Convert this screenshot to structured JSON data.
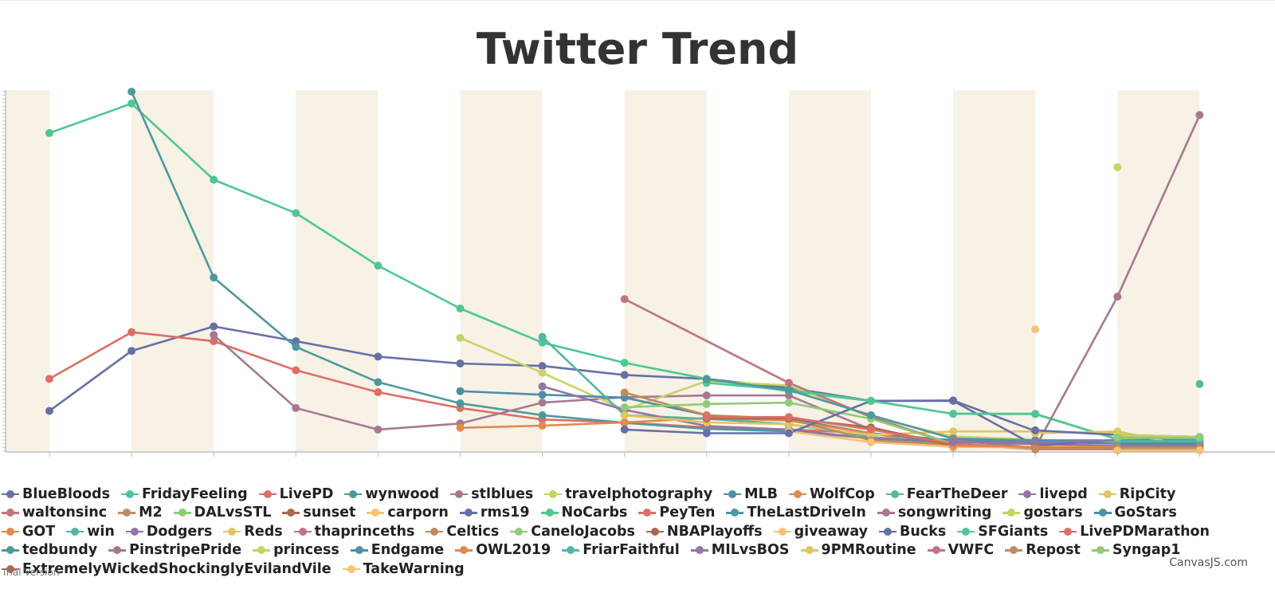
{
  "chart_data": {
    "type": "line",
    "title": "Twitter Trend",
    "x": [
      0,
      1,
      2,
      3,
      4,
      5,
      6,
      7,
      8,
      9,
      10,
      11,
      12,
      13,
      14
    ],
    "ylim": [
      0,
      1000
    ],
    "grid": false,
    "alternating_bands": true,
    "legend_position": "bottom",
    "series": [
      {
        "name": "BlueBloods",
        "color": "#6570A6",
        "points": [
          [
            0,
            112
          ],
          [
            1,
            279
          ],
          [
            2,
            347
          ],
          [
            3,
            306
          ],
          [
            4,
            263
          ],
          [
            5,
            244
          ],
          [
            6,
            237
          ],
          [
            7,
            212
          ],
          [
            8,
            201
          ],
          [
            9,
            176
          ],
          [
            10,
            140
          ],
          [
            11,
            141
          ],
          [
            12,
            56
          ]
        ]
      },
      {
        "name": "FridayFeeling",
        "color": "#4FC792",
        "points": [
          [
            0,
            885
          ],
          [
            1,
            967
          ],
          [
            2,
            755
          ],
          [
            3,
            662
          ],
          [
            4,
            516
          ],
          [
            5,
            397
          ],
          [
            6,
            302
          ],
          [
            7,
            246
          ],
          [
            8,
            201
          ],
          [
            9,
            166
          ],
          [
            10,
            140
          ],
          [
            11,
            104
          ],
          [
            12,
            103
          ],
          [
            13,
            33
          ],
          [
            14,
            39
          ]
        ]
      },
      {
        "name": "LivePD",
        "color": "#DE6E66",
        "points": [
          [
            0,
            201
          ],
          [
            1,
            331
          ],
          [
            2,
            306
          ],
          [
            3,
            225
          ],
          [
            4,
            164
          ],
          [
            5,
            120
          ],
          [
            6,
            88
          ],
          [
            7,
            80
          ],
          [
            8,
            66
          ],
          [
            9,
            60
          ],
          [
            10,
            50
          ],
          [
            11,
            26
          ]
        ]
      },
      {
        "name": "wynwood",
        "color": "#4D9A9C",
        "points": [
          [
            1,
            1000
          ],
          [
            2,
            483
          ],
          [
            3,
            290
          ],
          [
            4,
            192
          ],
          [
            5,
            133
          ],
          [
            6,
            100
          ],
          [
            7,
            79
          ],
          [
            8,
            62
          ],
          [
            9,
            55
          ],
          [
            10,
            36
          ],
          [
            11,
            32
          ],
          [
            12,
            30
          ],
          [
            13,
            28
          ],
          [
            14,
            22
          ]
        ]
      },
      {
        "name": "stlblues",
        "color": "#A8788F",
        "points": [
          [
            2,
            323
          ],
          [
            3,
            120
          ],
          [
            4,
            60
          ],
          [
            5,
            77
          ],
          [
            6,
            135
          ],
          [
            7,
            150
          ],
          [
            8,
            155
          ],
          [
            9,
            155
          ],
          [
            10,
            60
          ],
          [
            11,
            22
          ]
        ]
      },
      {
        "name": "travelphotography",
        "color": "#C9D265",
        "points": [
          [
            5,
            315
          ],
          [
            6,
            218
          ],
          [
            7,
            115
          ],
          [
            8,
            195
          ],
          [
            9,
            183
          ],
          [
            10,
            95
          ],
          [
            11,
            41
          ],
          [
            12,
            32
          ],
          [
            13,
            25
          ],
          [
            14,
            20
          ]
        ]
      },
      {
        "name": "MLB",
        "color": "#4B8FA7",
        "points": [
          [
            5,
            167
          ],
          [
            6,
            157
          ],
          [
            7,
            149
          ],
          [
            8,
            100
          ],
          [
            9,
            90
          ],
          [
            10,
            50
          ],
          [
            11,
            30
          ],
          [
            12,
            25
          ],
          [
            13,
            22
          ],
          [
            14,
            18
          ]
        ]
      },
      {
        "name": "WolfCop",
        "color": "#E08A4C",
        "points": [
          [
            5,
            65
          ],
          [
            6,
            71
          ],
          [
            7,
            80
          ],
          [
            8,
            92
          ],
          [
            9,
            85
          ],
          [
            10,
            50
          ],
          [
            11,
            10
          ]
        ]
      },
      {
        "name": "FearTheDeer",
        "color": "#55B5A5",
        "points": [
          [
            6,
            318
          ],
          [
            7,
            100
          ],
          [
            8,
            90
          ],
          [
            9,
            75
          ],
          [
            10,
            40
          ],
          [
            11,
            20
          ]
        ]
      },
      {
        "name": "livepd",
        "color": "#9474A6",
        "points": [
          [
            6,
            180
          ],
          [
            7,
            115
          ],
          [
            8,
            70
          ],
          [
            9,
            60
          ],
          [
            10,
            35
          ],
          [
            11,
            25
          ],
          [
            12,
            20
          ],
          [
            13,
            15
          ],
          [
            14,
            8
          ]
        ]
      },
      {
        "name": "RipCity",
        "color": "#E2C463",
        "points": [
          [
            7,
            100
          ],
          [
            8,
            80
          ],
          [
            9,
            75
          ],
          [
            10,
            45
          ],
          [
            11,
            55
          ],
          [
            12,
            55
          ],
          [
            13,
            50
          ],
          [
            14,
            25
          ]
        ]
      },
      {
        "name": "waltonsinc",
        "color": "#C07480",
        "points": [
          [
            7,
            423
          ],
          [
            9,
            190
          ],
          [
            10,
            95
          ],
          [
            11,
            20
          ],
          [
            12,
            10
          ],
          [
            13,
            8
          ],
          [
            14,
            5
          ]
        ]
      },
      {
        "name": "M2",
        "color": "#C08A5E",
        "points": [
          [
            7,
            163
          ],
          [
            8,
            100
          ],
          [
            9,
            90
          ],
          [
            10,
            30
          ],
          [
            11,
            18
          ],
          [
            12,
            6
          ],
          [
            13,
            6
          ],
          [
            14,
            6
          ]
        ]
      },
      {
        "name": "DALvsSTL",
        "color": "#8FCB78",
        "points": [
          [
            7,
            122
          ],
          [
            8,
            131
          ],
          [
            9,
            135
          ],
          [
            10,
            90
          ],
          [
            11,
            20
          ]
        ]
      },
      {
        "name": "sunset",
        "color": "#A9694C",
        "points": [
          [
            8,
            91
          ],
          [
            9,
            91
          ],
          [
            10,
            66
          ],
          [
            11,
            15
          ]
        ]
      },
      {
        "name": "carporn",
        "color": "#F2C476",
        "points": [
          [
            9,
            55
          ],
          [
            10,
            25
          ],
          [
            11,
            12
          ],
          [
            12,
            10
          ],
          [
            13,
            10
          ],
          [
            14,
            10
          ]
        ]
      },
      {
        "name": "rms19",
        "color": "#6570A6",
        "points": [
          [
            7,
            60
          ],
          [
            8,
            50
          ],
          [
            9,
            50
          ],
          [
            10,
            140
          ],
          [
            11,
            140
          ],
          [
            12,
            15
          ],
          [
            13,
            32
          ],
          [
            14,
            30
          ]
        ]
      },
      {
        "name": "NoCarbs",
        "color": "#4FC792",
        "points": [
          [
            8,
            190
          ],
          [
            9,
            170
          ],
          [
            10,
            140
          ],
          [
            11,
            104
          ],
          [
            12,
            104
          ],
          [
            13,
            33
          ]
        ]
      },
      {
        "name": "PeyTen",
        "color": "#DE6E66",
        "points": [
          [
            8,
            95
          ],
          [
            9,
            95
          ],
          [
            10,
            60
          ],
          [
            11,
            20
          ],
          [
            12,
            10
          ],
          [
            13,
            8
          ],
          [
            14,
            5
          ]
        ]
      },
      {
        "name": "TheLastDriveIn",
        "color": "#4D9A9C",
        "points": [
          [
            8,
            200
          ],
          [
            9,
            170
          ],
          [
            10,
            100
          ],
          [
            11,
            35
          ],
          [
            12,
            30
          ],
          [
            13,
            30
          ],
          [
            14,
            25
          ]
        ]
      },
      {
        "name": "songwriting",
        "color": "#A8788F",
        "points": [
          [
            11,
            30
          ],
          [
            12,
            10
          ],
          [
            13,
            430
          ],
          [
            14,
            935
          ]
        ]
      },
      {
        "name": "gostars",
        "color": "#C9D265",
        "points": [
          [
            13,
            790
          ]
        ]
      },
      {
        "name": "GoStars",
        "color": "#4B8FA7",
        "points": [
          [
            12,
            30
          ],
          [
            13,
            30
          ],
          [
            14,
            28
          ]
        ]
      },
      {
        "name": "GOT",
        "color": "#E08A4C",
        "points": [
          [
            11,
            15
          ],
          [
            12,
            12
          ],
          [
            13,
            12
          ],
          [
            14,
            10
          ]
        ]
      },
      {
        "name": "win",
        "color": "#55B5A5",
        "points": [
          [
            14,
            187
          ]
        ]
      },
      {
        "name": "Dodgers",
        "color": "#9474A6",
        "points": [
          [
            11,
            25
          ],
          [
            12,
            25
          ],
          [
            13,
            30
          ],
          [
            14,
            30
          ]
        ]
      },
      {
        "name": "Reds",
        "color": "#E2C463",
        "points": [
          [
            12,
            50
          ],
          [
            13,
            55
          ],
          [
            14,
            8
          ]
        ]
      },
      {
        "name": "thaprinceths",
        "color": "#C07480",
        "points": [
          [
            12,
            8
          ],
          [
            13,
            8
          ],
          [
            14,
            8
          ]
        ]
      },
      {
        "name": "Celtics",
        "color": "#C08A5E",
        "points": [
          [
            12,
            5
          ],
          [
            13,
            5
          ],
          [
            14,
            5
          ]
        ]
      },
      {
        "name": "CaneloJacobs",
        "color": "#8FCB78",
        "points": [
          [
            13,
            35
          ],
          [
            14,
            40
          ]
        ]
      },
      {
        "name": "NBAPlayoffs",
        "color": "#A9694C",
        "points": [
          [
            13,
            20
          ],
          [
            14,
            18
          ]
        ]
      },
      {
        "name": "giveaway",
        "color": "#F2C476",
        "points": [
          [
            12,
            339
          ]
        ]
      },
      {
        "name": "Bucks",
        "color": "#6570A6",
        "points": [
          [
            12,
            58
          ],
          [
            13,
            45
          ],
          [
            14,
            40
          ]
        ]
      },
      {
        "name": "SFGiants",
        "color": "#4FC792",
        "points": [
          [
            13,
            38
          ],
          [
            14,
            36
          ]
        ]
      },
      {
        "name": "LivePDMarathon",
        "color": "#DE6E66",
        "points": [
          [
            13,
            4
          ],
          [
            14,
            4
          ]
        ]
      },
      {
        "name": "tedbundy",
        "color": "#4D9A9C",
        "points": [
          [
            13,
            25
          ],
          [
            14,
            22
          ]
        ]
      },
      {
        "name": "PinstripePride",
        "color": "#A8788F",
        "points": [
          [
            13,
            15
          ],
          [
            14,
            15
          ]
        ]
      },
      {
        "name": "princess",
        "color": "#C9D265",
        "points": [
          [
            13,
            45
          ],
          [
            14,
            40
          ]
        ]
      },
      {
        "name": "Endgame",
        "color": "#4B8FA7",
        "points": [
          [
            13,
            20
          ],
          [
            14,
            20
          ]
        ]
      },
      {
        "name": "OWL2019",
        "color": "#E08A4C",
        "points": [
          [
            13,
            8
          ],
          [
            14,
            8
          ]
        ]
      },
      {
        "name": "FriarFaithful",
        "color": "#55B5A5",
        "points": [
          [
            13,
            28
          ],
          [
            14,
            28
          ]
        ]
      },
      {
        "name": "MILvsBOS",
        "color": "#9474A6",
        "points": [
          [
            13,
            12
          ],
          [
            14,
            12
          ]
        ]
      },
      {
        "name": "9PMRoutine",
        "color": "#E2C463",
        "points": [
          [
            13,
            6
          ],
          [
            14,
            6
          ]
        ]
      },
      {
        "name": "VWFC",
        "color": "#C07480",
        "points": [
          [
            13,
            3
          ],
          [
            14,
            3
          ]
        ]
      },
      {
        "name": "Repost",
        "color": "#C08A5E",
        "points": [
          [
            13,
            10
          ],
          [
            14,
            10
          ]
        ]
      },
      {
        "name": "Syngap1",
        "color": "#8FCB78",
        "points": [
          [
            13,
            38
          ],
          [
            14,
            38
          ]
        ]
      },
      {
        "name": "ExtremelyWickedShockinglyEvilandVile",
        "color": "#A9694C",
        "points": [
          [
            13,
            2
          ],
          [
            14,
            2
          ]
        ]
      },
      {
        "name": "TakeWarning",
        "color": "#F2C476",
        "points": [
          [
            13,
            2
          ],
          [
            14,
            2
          ]
        ]
      }
    ]
  },
  "footer": {
    "trial_text": "Trial Version",
    "credit": "CanvasJS.com"
  }
}
